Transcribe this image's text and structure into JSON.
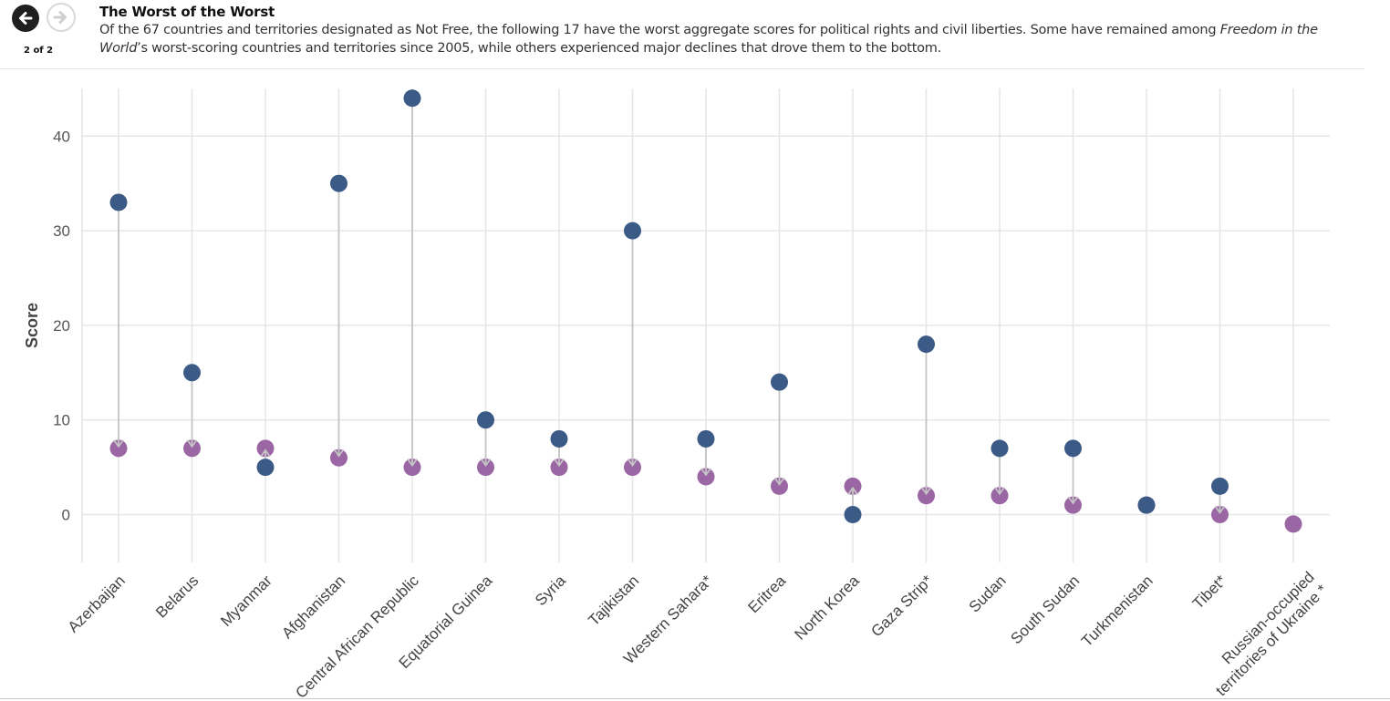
{
  "header": {
    "title": "The Worst of the Worst",
    "subtitle_start": "Of the 67 countries and territories designated as Not Free, the following 17 have the worst aggregate scores for political rights and civil liberties. Some have remained among ",
    "subtitle_emph": "Freedom in the World",
    "subtitle_end": "’s worst-scoring countries and territories since 2005, while others experienced major declines that drove them to the bottom.",
    "page_indicator": "2 of 2",
    "prev_icon": "arrow-left-icon",
    "next_icon": "arrow-right-icon"
  },
  "chart_data": {
    "type": "scatter",
    "ylabel": "Score",
    "ylim": [
      -5,
      45
    ],
    "yticks": [
      0,
      10,
      20,
      30,
      40
    ],
    "grid": true,
    "categories": [
      "Azerbaijan",
      "Belarus",
      "Myanmar",
      "Afghanistan",
      "Central African Republic",
      "Equatorial Guinea",
      "Syria",
      "Tajikistan",
      "Western Sahara*",
      "Eritrea",
      "North Korea",
      "Gaza Strip*",
      "Sudan",
      "South Sudan",
      "Turkmenistan",
      "Tibet*",
      "Russian-occupied territories of Ukraine *"
    ],
    "series": [
      {
        "color": "#3b5a86",
        "values": [
          33,
          15,
          5,
          35,
          44,
          10,
          8,
          30,
          8,
          14,
          0,
          18,
          7,
          7,
          1,
          3,
          null
        ]
      },
      {
        "color": "#9a66a3",
        "values": [
          7,
          7,
          7,
          6,
          5,
          5,
          5,
          5,
          4,
          3,
          3,
          2,
          2,
          1,
          1,
          0,
          -1
        ]
      }
    ],
    "connector_color": "#c4c4c4"
  }
}
